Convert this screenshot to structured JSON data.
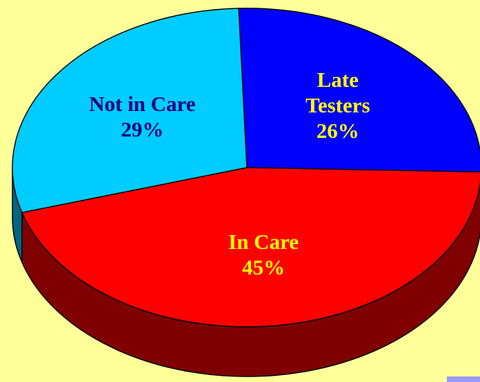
{
  "chart_data": {
    "type": "pie",
    "categories": [
      "Late Testers",
      "In Care",
      "Not in Care"
    ],
    "values": [
      26,
      45,
      29
    ],
    "value_labels": [
      "26%",
      "45%",
      "29%"
    ],
    "colors": [
      "#0000ff",
      "#ff0000",
      "#00ccff"
    ],
    "label_colors": [
      "#ffff00",
      "#ffff00",
      "#000080"
    ]
  }
}
